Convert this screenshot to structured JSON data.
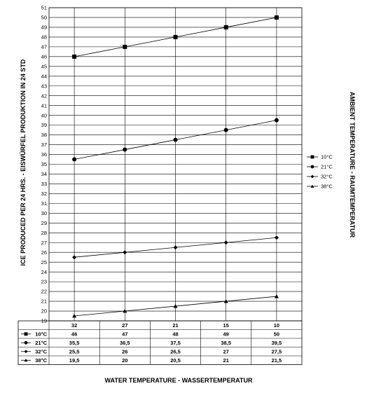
{
  "chart_data": {
    "type": "line",
    "xlabel": "WATER TEMPERATURE - WASSERTEMPERATUR",
    "ylabel": "ICE PRODUCED PER 24 HRS. - EISWÜRFEL PRODUKTION IN 24 STD",
    "legend_title": "AMBIENT TEMPERATURE - RAUMTEMPERATUR",
    "legend_position": "right",
    "grid": true,
    "ylim": [
      19,
      51
    ],
    "yticks": [
      "19",
      "20",
      "21",
      "22",
      "23",
      "24",
      "25",
      "26",
      "27",
      "28",
      "29",
      "30",
      "31",
      "32",
      "33",
      "34",
      "35",
      "36",
      "37",
      "38",
      "39",
      "40",
      "41",
      "42",
      "43",
      "44",
      "45",
      "46",
      "47",
      "48",
      "49",
      "50",
      "51"
    ],
    "categories": [
      "32",
      "27",
      "21",
      "15",
      "10"
    ],
    "series": [
      {
        "name": "10°C",
        "marker": "square",
        "values": [
          46,
          47,
          48,
          49,
          50
        ],
        "labels": [
          "46",
          "47",
          "48",
          "49",
          "50"
        ]
      },
      {
        "name": "21°C",
        "marker": "circle",
        "values": [
          35.5,
          36.5,
          37.5,
          38.5,
          39.5
        ],
        "labels": [
          "35,5",
          "36,5",
          "37,5",
          "38,5",
          "39,5"
        ]
      },
      {
        "name": "32°C",
        "marker": "diamond",
        "values": [
          25.5,
          26,
          26.5,
          27,
          27.5
        ],
        "labels": [
          "25,5",
          "26",
          "26,5",
          "27",
          "27,5"
        ]
      },
      {
        "name": "38°C",
        "marker": "triangle",
        "values": [
          19.5,
          20,
          20.5,
          21,
          21.5
        ],
        "labels": [
          "19,5",
          "20",
          "20,5",
          "21",
          "21,5"
        ]
      }
    ]
  }
}
